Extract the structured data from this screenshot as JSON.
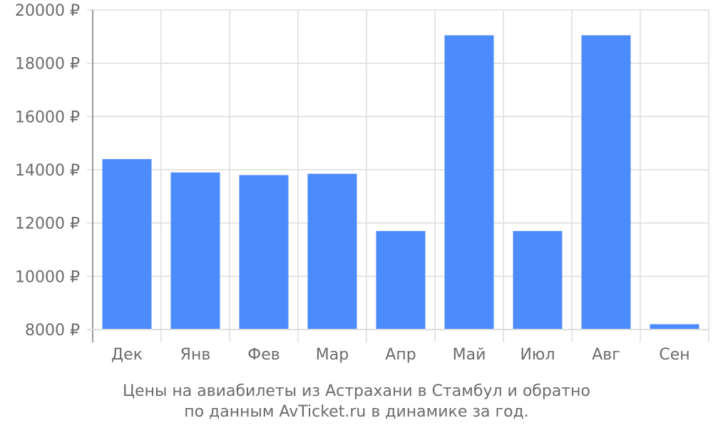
{
  "caption": {
    "line1": "Цены на авиабилеты из Астрахани в Стамбул и обратно",
    "line2": "по данным AvTicket.ru в динамике за год."
  },
  "colors": {
    "bar": "#4c8bfb",
    "grid": "#dddddd",
    "axis": "#9a9a9a",
    "text": "#6b6b6b"
  },
  "chart_data": {
    "type": "bar",
    "categories": [
      "Дек",
      "Янв",
      "Фев",
      "Мар",
      "Апр",
      "Май",
      "Июл",
      "Авг",
      "Сен"
    ],
    "values": [
      14400,
      13900,
      13800,
      13850,
      11700,
      19050,
      11700,
      19050,
      8200
    ],
    "ylim": [
      8000,
      20000
    ],
    "yticks": [
      8000,
      10000,
      12000,
      14000,
      16000,
      18000,
      20000
    ],
    "ytick_labels": [
      "8000 ₽",
      "10000 ₽",
      "12000 ₽",
      "14000 ₽",
      "16000 ₽",
      "18000 ₽",
      "20000 ₽"
    ],
    "grid": true,
    "legend": "none"
  }
}
